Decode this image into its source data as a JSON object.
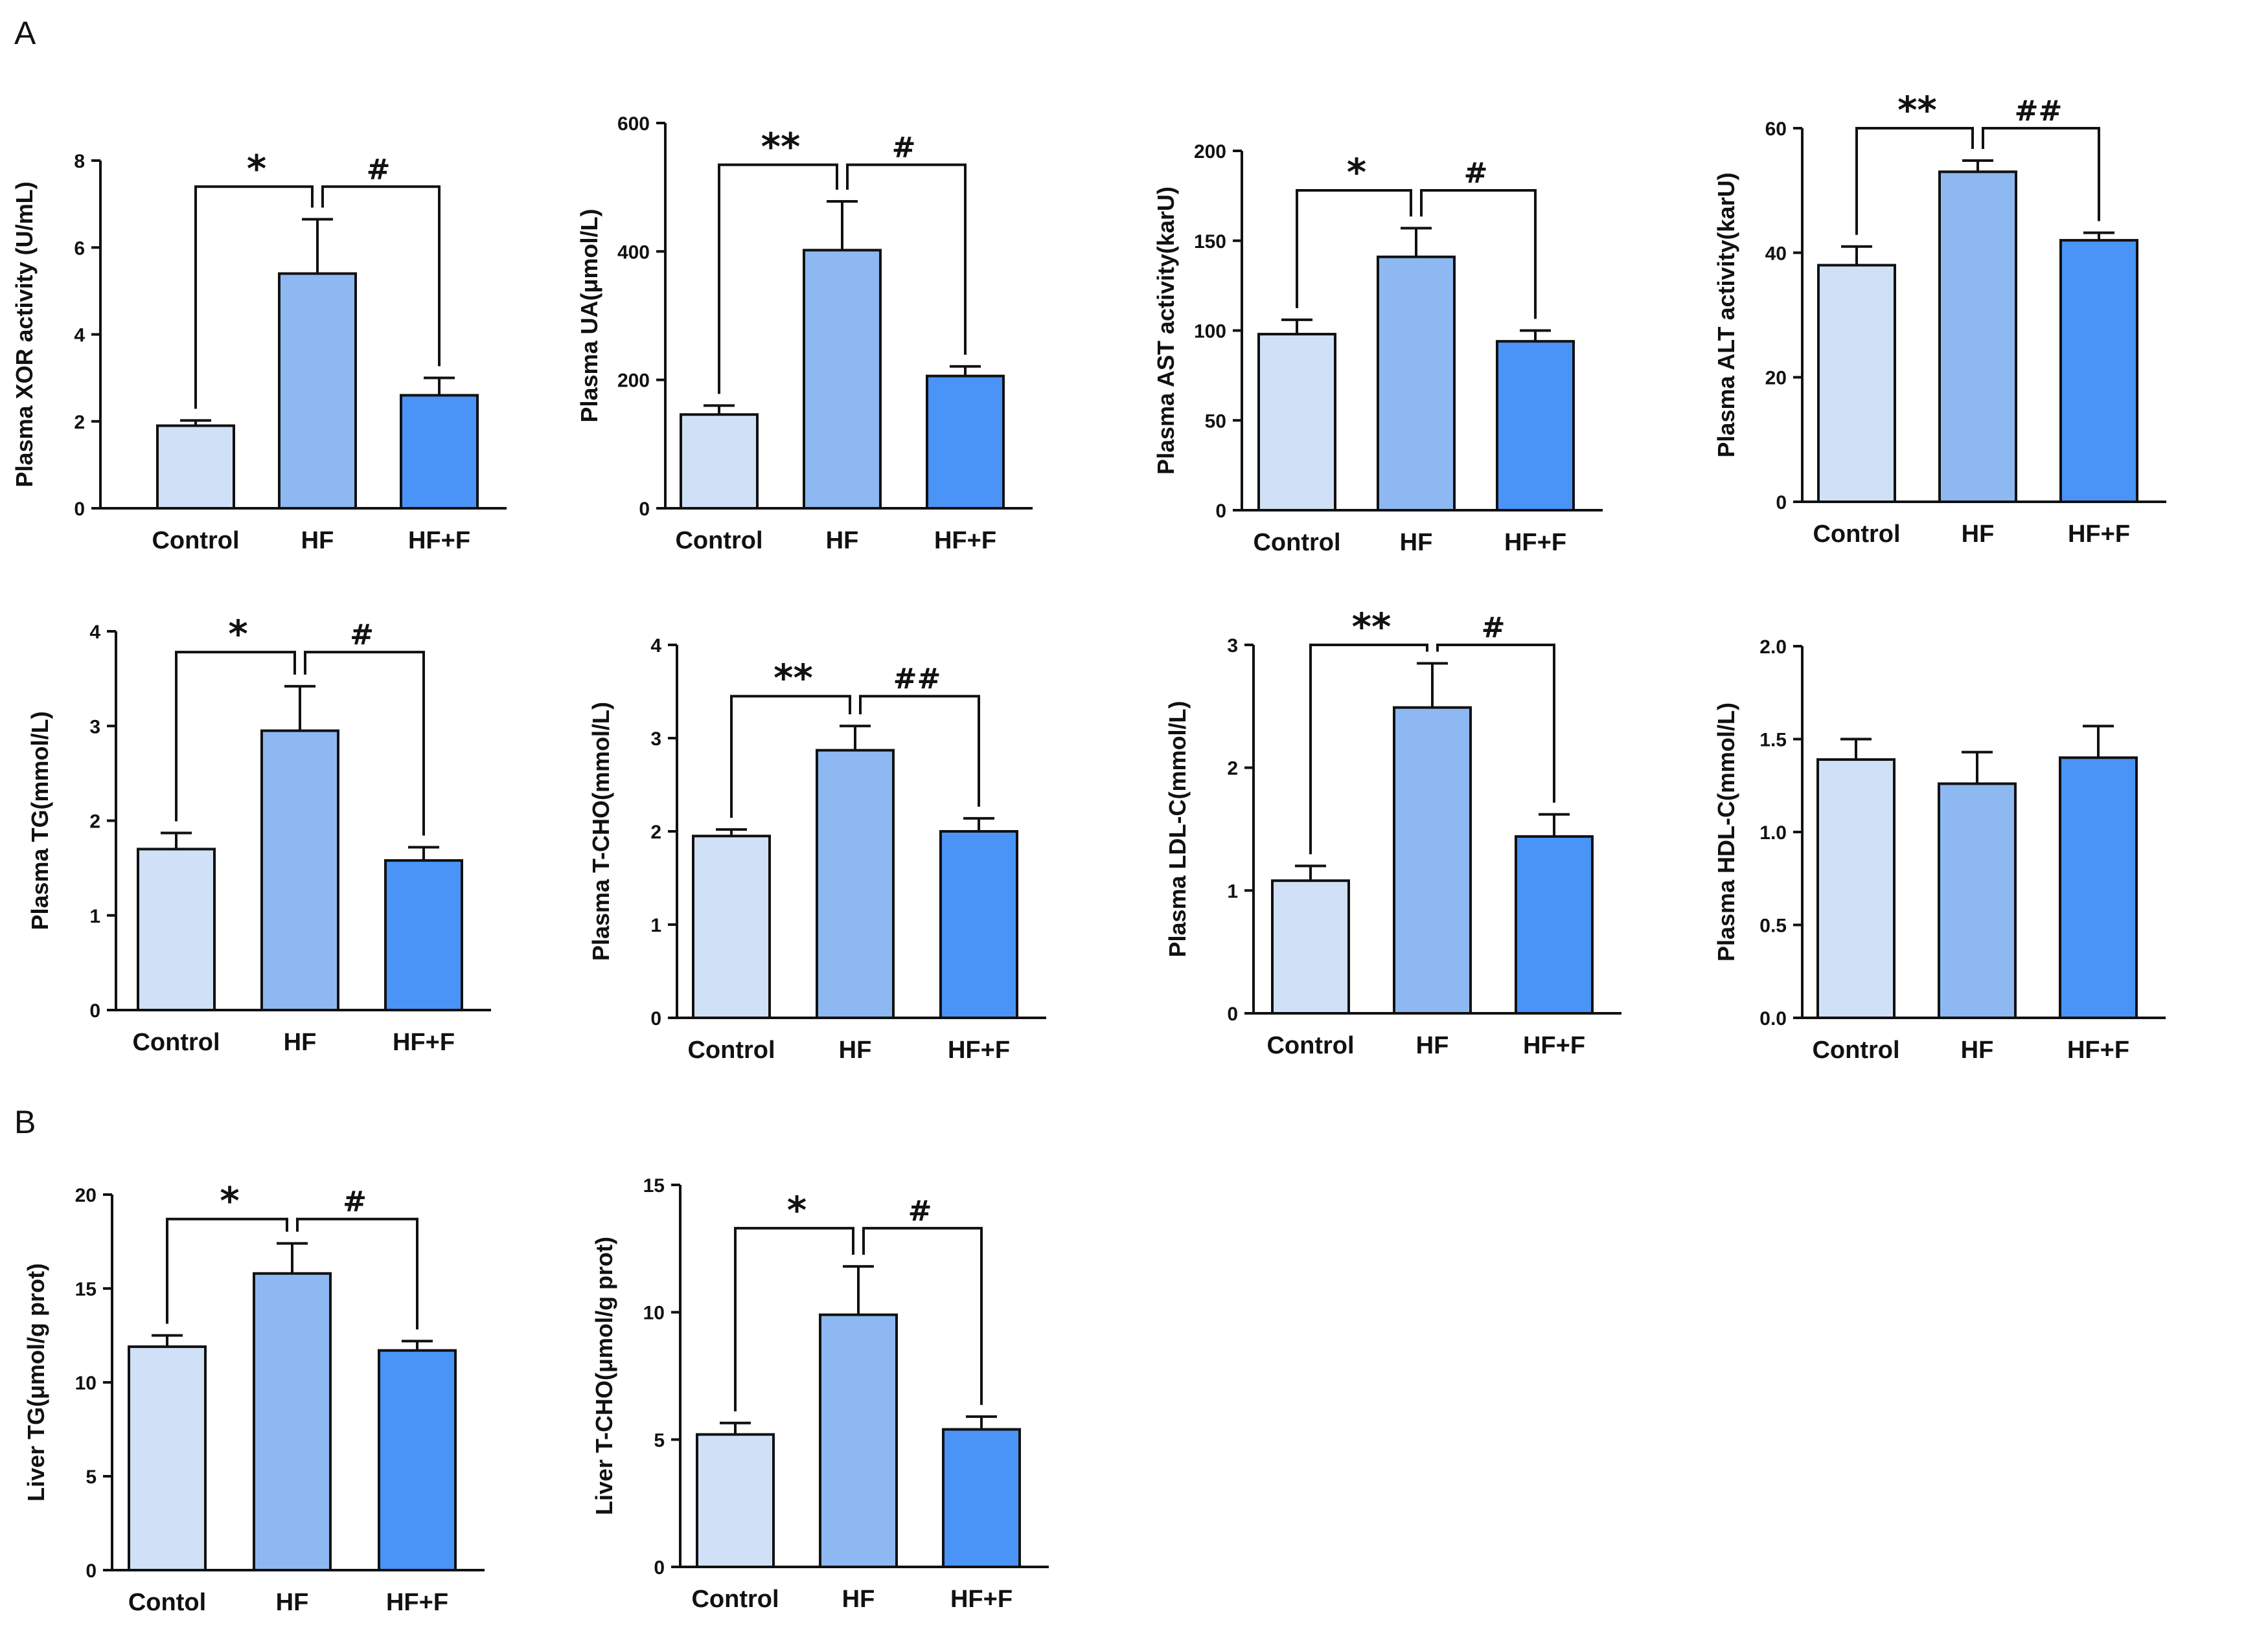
{
  "figure": {
    "panel_labels": [
      "A",
      "B"
    ],
    "colors": {
      "control": "#cfe0f7",
      "hf": "#8db8f2",
      "hff": "#4a93f7",
      "stroke": "#111111"
    }
  },
  "chart_data": [
    {
      "type": "bar",
      "panel": "A",
      "ylabel": "Plasma XOR activity (U/mL)",
      "categories": [
        "Control",
        "HF",
        "HF+F"
      ],
      "values": [
        1.9,
        5.4,
        2.6
      ],
      "errors": [
        0.12,
        1.25,
        0.4
      ],
      "ylim": [
        0,
        8
      ],
      "yticks": [
        0,
        2,
        4,
        6,
        8
      ],
      "tick_labels": [
        "0",
        "2",
        "4",
        "6",
        "8"
      ],
      "sig": [
        "*",
        "#"
      ],
      "bracket_y": 7.4
    },
    {
      "type": "bar",
      "panel": "A",
      "ylabel": "Plasma UA(μmol/L)",
      "categories": [
        "Control",
        "HF",
        "HF+F"
      ],
      "values": [
        146,
        402,
        206
      ],
      "errors": [
        14,
        76,
        15
      ],
      "ylim": [
        0,
        600
      ],
      "yticks": [
        0,
        200,
        400,
        600
      ],
      "tick_labels": [
        "0",
        "200",
        "400",
        "600"
      ],
      "sig": [
        "**",
        "#"
      ],
      "bracket_y": 535
    },
    {
      "type": "bar",
      "panel": "A",
      "ylabel": "Plasma AST activity(karU)",
      "categories": [
        "Control",
        "HF",
        "HF+F"
      ],
      "values": [
        98,
        141,
        94
      ],
      "errors": [
        8,
        16,
        6
      ],
      "ylim": [
        0,
        200
      ],
      "yticks": [
        0,
        50,
        100,
        150,
        200
      ],
      "tick_labels": [
        "0",
        "50",
        "100",
        "150",
        "200"
      ],
      "sig": [
        "*",
        "#"
      ],
      "bracket_y": 178
    },
    {
      "type": "bar",
      "panel": "A",
      "ylabel": "Plasma ALT activity(karU)",
      "categories": [
        "Control",
        "HF",
        "HF+F"
      ],
      "values": [
        38,
        53,
        42
      ],
      "errors": [
        3,
        1.8,
        1.2
      ],
      "ylim": [
        0,
        60
      ],
      "yticks": [
        0,
        20,
        40,
        60
      ],
      "tick_labels": [
        "0",
        "20",
        "40",
        "60"
      ],
      "sig": [
        "**",
        "##"
      ],
      "bracket_y": 60
    },
    {
      "type": "bar",
      "panel": "A",
      "ylabel": "Plasma TG(mmol/L)",
      "categories": [
        "Control",
        "HF",
        "HF+F"
      ],
      "values": [
        1.7,
        2.95,
        1.58
      ],
      "errors": [
        0.17,
        0.47,
        0.14
      ],
      "ylim": [
        0,
        4
      ],
      "yticks": [
        0,
        1,
        2,
        3,
        4
      ],
      "tick_labels": [
        "0",
        "1",
        "2",
        "3",
        "4"
      ],
      "sig": [
        "*",
        "#"
      ],
      "bracket_y": 3.78
    },
    {
      "type": "bar",
      "panel": "A",
      "ylabel": "Plasma T-CHO(mmol/L)",
      "categories": [
        "Control",
        "HF",
        "HF+F"
      ],
      "values": [
        1.95,
        2.87,
        2.0
      ],
      "errors": [
        0.07,
        0.26,
        0.14
      ],
      "ylim": [
        0,
        4
      ],
      "yticks": [
        0,
        1,
        2,
        3,
        4
      ],
      "tick_labels": [
        "0",
        "1",
        "2",
        "3",
        "4"
      ],
      "sig": [
        "**",
        "##"
      ],
      "bracket_y": 3.45
    },
    {
      "type": "bar",
      "panel": "A",
      "ylabel": "Plasma LDL-C(mmol/L)",
      "categories": [
        "Control",
        "HF",
        "HF+F"
      ],
      "values": [
        1.08,
        2.49,
        1.44
      ],
      "errors": [
        0.12,
        0.36,
        0.18
      ],
      "ylim": [
        0,
        3
      ],
      "yticks": [
        0,
        1,
        2,
        3
      ],
      "tick_labels": [
        "0",
        "1",
        "2",
        "3"
      ],
      "sig": [
        "**",
        "#"
      ],
      "bracket_y": 3.0
    },
    {
      "type": "bar",
      "panel": "A",
      "ylabel": "Plasma HDL-C(mmol/L)",
      "categories": [
        "Control",
        "HF",
        "HF+F"
      ],
      "values": [
        1.39,
        1.26,
        1.4
      ],
      "errors": [
        0.11,
        0.17,
        0.17
      ],
      "ylim": [
        0,
        2
      ],
      "yticks": [
        0,
        0.5,
        1,
        1.5,
        2
      ],
      "tick_labels": [
        "0.0",
        "0.5",
        "1.0",
        "1.5",
        "2.0"
      ],
      "sig": [],
      "bracket_y": null
    },
    {
      "type": "bar",
      "panel": "B",
      "ylabel": "Liver TG(μmol/g prot)",
      "categories": [
        "Contol",
        "HF",
        "HF+F"
      ],
      "values": [
        11.9,
        15.8,
        11.7
      ],
      "errors": [
        0.6,
        1.6,
        0.5
      ],
      "ylim": [
        0,
        20
      ],
      "yticks": [
        0,
        5,
        10,
        15,
        20
      ],
      "tick_labels": [
        "0",
        "5",
        "10",
        "15",
        "20"
      ],
      "sig": [
        "*",
        "#"
      ],
      "bracket_y": 18.7
    },
    {
      "type": "bar",
      "panel": "B",
      "ylabel": "Liver T-CHO(μmol/g prot)",
      "categories": [
        "Control",
        "HF",
        "HF+F"
      ],
      "values": [
        5.2,
        9.9,
        5.4
      ],
      "errors": [
        0.45,
        1.9,
        0.5
      ],
      "ylim": [
        0,
        15
      ],
      "yticks": [
        0,
        5,
        10,
        15
      ],
      "tick_labels": [
        "0",
        "5",
        "10",
        "15"
      ],
      "sig": [
        "*",
        "#"
      ],
      "bracket_y": 13.3
    }
  ]
}
